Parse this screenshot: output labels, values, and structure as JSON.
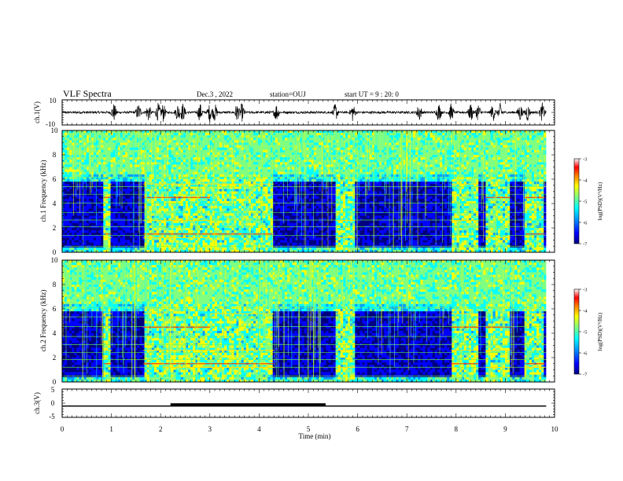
{
  "header": {
    "title": "VLF Spectra",
    "date": "Dec.3 , 2022",
    "station": "station=OUJ",
    "start": "start UT =  9 : 20: 0"
  },
  "colors": {
    "colormap": [
      "#00007f",
      "#0000ff",
      "#00a0ff",
      "#00ffff",
      "#80ff80",
      "#ffff00",
      "#ff8000",
      "#ff0000",
      "#ffffff"
    ]
  },
  "chart_data": [
    {
      "type": "line",
      "name": "ch1-waveform",
      "ylabel": "ch.1(V)",
      "ylim": [
        -10,
        10
      ],
      "yticks": [
        "10",
        "-10"
      ],
      "x_range": [
        0,
        9.83
      ],
      "bursts_min": [
        1.05,
        1.55,
        1.75,
        1.95,
        2.05,
        2.35,
        2.45,
        2.8,
        3.0,
        3.1,
        3.55,
        3.65,
        4.35,
        5.55,
        5.9,
        7.25,
        7.65,
        7.9,
        8.3,
        8.45,
        8.75,
        8.9,
        9.3,
        9.45,
        9.75
      ]
    },
    {
      "type": "heatmap",
      "name": "ch1-spectrogram",
      "ylabel": "ch.1 Frequency (kHz)",
      "ylim": [
        0,
        10
      ],
      "yticks": [
        "0",
        "2",
        "4",
        "6",
        "8",
        "10"
      ],
      "colorbar_label": "log(PSD)(V²/Hz)",
      "colorbar_ticks": [
        "-3",
        "-4",
        "-5",
        "-6",
        "-7"
      ],
      "active_intervals_min": [
        [
          0.85,
          1.0
        ],
        [
          1.65,
          2.05
        ],
        [
          2.05,
          3.0
        ],
        [
          3.0,
          4.3
        ],
        [
          5.55,
          5.95
        ],
        [
          7.9,
          8.45
        ],
        [
          8.6,
          9.1
        ],
        [
          9.4,
          9.8
        ]
      ],
      "quiet_cutoff_khz": 6
    },
    {
      "type": "heatmap",
      "name": "ch2-spectrogram",
      "ylabel": "ch.2 Frequency (kHz)",
      "ylim": [
        0,
        10
      ],
      "yticks": [
        "0",
        "2",
        "4",
        "6",
        "8",
        "10"
      ],
      "colorbar_label": "log(PSD)(V²/Hz)",
      "colorbar_ticks": [
        "-3",
        "-4",
        "-5",
        "-6",
        "-7"
      ],
      "active_intervals_min": [
        [
          0.85,
          1.0
        ],
        [
          1.65,
          2.05
        ],
        [
          2.05,
          3.0
        ],
        [
          3.0,
          4.3
        ],
        [
          5.55,
          5.95
        ],
        [
          7.9,
          8.45
        ],
        [
          8.6,
          9.1
        ],
        [
          9.4,
          9.8
        ]
      ],
      "quiet_cutoff_khz": 6
    },
    {
      "type": "line",
      "name": "ch3-voltage",
      "ylabel": "ch.3(V)",
      "ylim": [
        -5,
        5
      ],
      "yticks": [
        "5",
        "0",
        "-5"
      ],
      "baseline_v": -1,
      "thick_segment_min": [
        2.2,
        5.35
      ],
      "x_range": [
        0,
        9.83
      ]
    }
  ],
  "xaxis": {
    "label": "Time (min)",
    "ticks": [
      "0",
      "1",
      "2",
      "3",
      "4",
      "5",
      "6",
      "7",
      "8",
      "9",
      "10"
    ],
    "xlim": [
      0,
      10
    ]
  }
}
